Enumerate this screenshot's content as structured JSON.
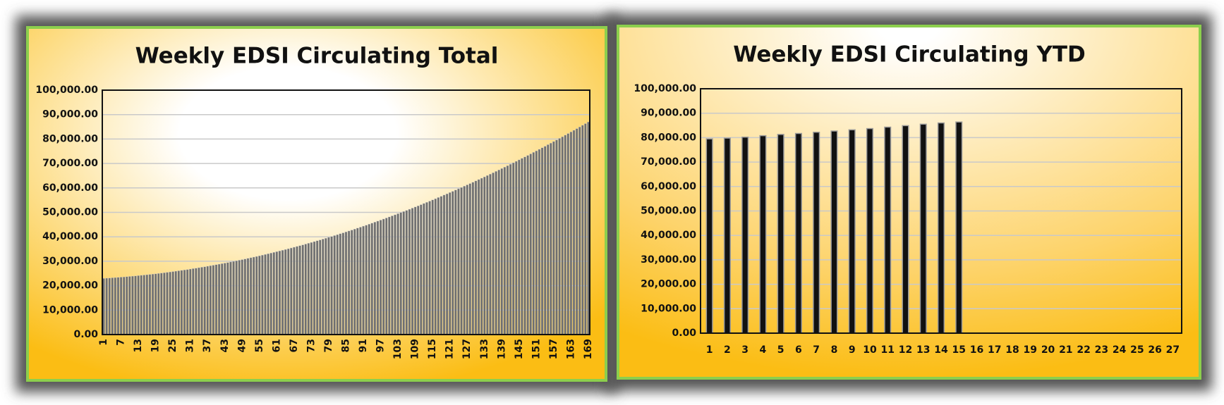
{
  "chart_data": [
    {
      "type": "bar",
      "title": "Weekly EDSI Circulating Total",
      "categories": [
        1,
        null,
        null,
        null,
        null,
        null,
        7,
        null,
        null,
        null,
        null,
        null,
        13,
        null,
        null,
        null,
        null,
        null,
        19,
        null,
        null,
        null,
        null,
        null,
        25,
        null,
        null,
        null,
        null,
        null,
        31,
        null,
        null,
        null,
        null,
        null,
        37,
        null,
        null,
        null,
        null,
        null,
        43,
        null,
        null,
        null,
        null,
        null,
        49,
        null,
        null,
        null,
        null,
        null,
        55,
        null,
        null,
        null,
        null,
        null,
        61,
        null,
        null,
        null,
        null,
        null,
        67,
        null,
        null,
        null,
        null,
        null,
        73,
        null,
        null,
        null,
        null,
        null,
        79,
        null,
        null,
        null,
        null,
        null,
        85,
        null,
        null,
        null,
        null,
        null,
        91,
        null,
        null,
        null,
        null,
        null,
        97,
        null,
        null,
        null,
        null,
        null,
        103,
        null,
        null,
        null,
        null,
        null,
        109,
        null,
        null,
        null,
        null,
        null,
        115,
        null,
        null,
        null,
        null,
        null,
        121,
        null,
        null,
        null,
        null,
        null,
        127,
        null,
        null,
        null,
        null,
        null,
        133,
        null,
        null,
        null,
        null,
        null,
        139,
        null,
        null,
        null,
        null,
        null,
        145,
        null,
        null,
        null,
        null,
        null,
        151,
        null,
        null,
        null,
        null,
        null,
        157,
        null,
        null,
        null,
        null,
        null,
        163,
        null,
        null,
        null,
        null,
        null,
        169
      ],
      "values": [
        23000,
        23070,
        23150,
        23230,
        23320,
        23400,
        23500,
        23590,
        23690,
        23790,
        23900,
        24010,
        24120,
        24240,
        24360,
        24490,
        24620,
        24750,
        24880,
        25020,
        25170,
        25310,
        25470,
        25620,
        25780,
        25940,
        26100,
        26270,
        26450,
        26620,
        26800,
        26990,
        27170,
        27370,
        27560,
        27760,
        27960,
        28170,
        28380,
        28590,
        28810,
        29030,
        29250,
        29480,
        29710,
        29950,
        30190,
        30430,
        30680,
        30930,
        31180,
        31440,
        31700,
        31960,
        32230,
        32500,
        32780,
        33060,
        33340,
        33630,
        33920,
        34220,
        34510,
        34820,
        35120,
        35430,
        35740,
        36060,
        36380,
        36700,
        37030,
        37360,
        37700,
        38040,
        38380,
        38720,
        39070,
        39430,
        39780,
        40140,
        40510,
        40880,
        41250,
        41620,
        42000,
        42390,
        42770,
        43160,
        43560,
        43950,
        44360,
        44760,
        45170,
        45580,
        46000,
        46420,
        46840,
        47270,
        47700,
        48130,
        48570,
        49010,
        49460,
        49910,
        50360,
        50820,
        51280,
        51740,
        52210,
        52680,
        53150,
        53630,
        54110,
        54600,
        55090,
        55580,
        56080,
        56580,
        57090,
        57590,
        58110,
        58620,
        59140,
        59660,
        60190,
        60720,
        61250,
        61790,
        62330,
        62880,
        63430,
        63980,
        64530,
        65090,
        65660,
        66220,
        66790,
        67370,
        67950,
        68530,
        69110,
        69700,
        70300,
        70890,
        71490,
        72100,
        72700,
        73310,
        73930,
        74550,
        75170,
        75800,
        76430,
        77060,
        77700,
        78340,
        78980,
        79630,
        80280,
        80940,
        81600,
        82260,
        82920,
        83590,
        84270,
        84950,
        85630,
        86310,
        87000
      ],
      "color": "#6f6f6f",
      "ylim": [
        0,
        100000
      ],
      "yticks": [
        {
          "value": 0,
          "label": "0.00"
        },
        {
          "value": 10000,
          "label": "10,000.00"
        },
        {
          "value": 20000,
          "label": "20,000.00"
        },
        {
          "value": 30000,
          "label": "30,000.00"
        },
        {
          "value": 40000,
          "label": "40,000.00"
        },
        {
          "value": 50000,
          "label": "50,000.00"
        },
        {
          "value": 60000,
          "label": "60,000.00"
        },
        {
          "value": 70000,
          "label": "70,000.00"
        },
        {
          "value": 80000,
          "label": "80,000.00"
        },
        {
          "value": 90000,
          "label": "90,000.00"
        },
        {
          "value": 100000,
          "label": "100,000.00"
        }
      ],
      "grid": true
    },
    {
      "type": "bar",
      "title": "Weekly EDSI Circulating YTD",
      "categories": [
        1,
        2,
        3,
        4,
        5,
        6,
        7,
        8,
        9,
        10,
        11,
        12,
        13,
        14,
        15,
        16,
        17,
        18,
        19,
        20,
        21,
        22,
        23,
        24,
        25,
        26,
        27
      ],
      "values": [
        79500,
        79800,
        80200,
        80800,
        81300,
        81700,
        82200,
        82700,
        83200,
        83700,
        84300,
        84900,
        85500,
        86000,
        86400,
        null,
        null,
        null,
        null,
        null,
        null,
        null,
        null,
        null,
        null,
        null,
        null
      ],
      "color": "#111111",
      "ylim": [
        0,
        100000
      ],
      "yticks": [
        {
          "value": 0,
          "label": "0.00"
        },
        {
          "value": 10000,
          "label": "10,000.00"
        },
        {
          "value": 20000,
          "label": "20,000.00"
        },
        {
          "value": 30000,
          "label": "30,000.00"
        },
        {
          "value": 40000,
          "label": "40,000.00"
        },
        {
          "value": 50000,
          "label": "50,000.00"
        },
        {
          "value": 60000,
          "label": "60,000.00"
        },
        {
          "value": 70000,
          "label": "70,000.00"
        },
        {
          "value": 80000,
          "label": "80,000.00"
        },
        {
          "value": 90000,
          "label": "90,000.00"
        },
        {
          "value": 100000,
          "label": "100,000.00"
        }
      ],
      "grid": true
    }
  ]
}
